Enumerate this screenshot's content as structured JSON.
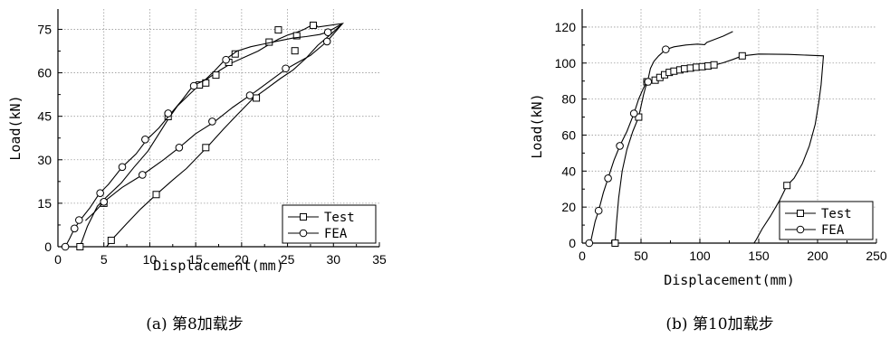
{
  "chart_data": [
    {
      "type": "line",
      "caption": "(a) 第8加载步",
      "xlabel": "Displacement(mm)",
      "ylabel": "Load(kN)",
      "xlim": [
        0,
        35
      ],
      "ylim": [
        0,
        82
      ],
      "x_ticks": [
        0,
        5,
        10,
        15,
        20,
        25,
        30,
        35
      ],
      "y_ticks": [
        0,
        15,
        30,
        45,
        60,
        75
      ],
      "grid": true,
      "legend_position": "bottom-right",
      "series": [
        {
          "name": "Test",
          "marker": "square",
          "line": [
            [
              2.4,
              0
            ],
            [
              3.2,
              7
            ],
            [
              4.3,
              14
            ],
            [
              5.3,
              17.2
            ],
            [
              6.9,
              22
            ],
            [
              8.3,
              27.5
            ],
            [
              9.8,
              33
            ],
            [
              11,
              39
            ],
            [
              12,
              44
            ],
            [
              13,
              48.5
            ],
            [
              14.3,
              52.5
            ],
            [
              15.3,
              55.5
            ],
            [
              16.5,
              58.5
            ],
            [
              17.7,
              61
            ],
            [
              19,
              63.5
            ],
            [
              20.4,
              65.5
            ],
            [
              21.8,
              67.5
            ],
            [
              23,
              69.8
            ],
            [
              24,
              71.6
            ],
            [
              25,
              73
            ],
            [
              26,
              74
            ],
            [
              26.8,
              75
            ],
            [
              27.5,
              76.2
            ],
            [
              28.1,
              76.6
            ],
            [
              28.3,
              75.8
            ],
            [
              31,
              77
            ],
            [
              29.6,
              73
            ],
            [
              28.3,
              69.5
            ],
            [
              27,
              65
            ],
            [
              25.6,
              61
            ],
            [
              24.2,
              58
            ],
            [
              22.5,
              54
            ],
            [
              21.3,
              51.3
            ],
            [
              19.5,
              45.5
            ],
            [
              18,
              40.5
            ],
            [
              16.3,
              34.5
            ],
            [
              14,
              27
            ],
            [
              12.5,
              23
            ],
            [
              10.7,
              18
            ],
            [
              9,
              13
            ],
            [
              7.5,
              8
            ],
            [
              5.8,
              2.2
            ],
            [
              5.3,
              0
            ]
          ],
          "markers": [
            [
              2.4,
              0
            ],
            [
              5.8,
              2.2
            ],
            [
              10.7,
              18
            ],
            [
              16.1,
              34.2
            ],
            [
              21.6,
              51.3
            ],
            [
              25.8,
              67.6
            ],
            [
              27.8,
              76.4
            ],
            [
              24,
              74.8
            ],
            [
              26,
              72.8
            ],
            [
              23,
              70.6
            ],
            [
              19.3,
              66.5
            ],
            [
              18.6,
              63.6
            ],
            [
              17.2,
              59.2
            ],
            [
              16.1,
              56.5
            ],
            [
              15.4,
              55.8
            ],
            [
              12,
              44.9
            ],
            [
              5,
              15
            ]
          ]
        },
        {
          "name": "FEA",
          "marker": "circle",
          "line": [
            [
              0.8,
              0
            ],
            [
              1.3,
              3
            ],
            [
              1.8,
              6.3
            ],
            [
              2.5,
              9.5
            ],
            [
              3.5,
              13.5
            ],
            [
              4.5,
              18.3
            ],
            [
              5.5,
              21.5
            ],
            [
              7,
              27.5
            ],
            [
              8.5,
              32
            ],
            [
              9.7,
              37
            ],
            [
              11,
              41
            ],
            [
              12.3,
              46
            ],
            [
              13.5,
              50.5
            ],
            [
              14.7,
              55.5
            ],
            [
              16,
              57.5
            ],
            [
              17,
              60.5
            ],
            [
              18.2,
              64.5
            ],
            [
              19.5,
              67.5
            ],
            [
              21,
              69
            ],
            [
              22.5,
              70
            ],
            [
              24,
              71
            ],
            [
              25.6,
              72
            ],
            [
              27,
              72.5
            ],
            [
              28.5,
              73.2
            ],
            [
              29.3,
              74
            ],
            [
              31,
              77
            ],
            [
              29.3,
              70.8
            ],
            [
              27.5,
              66
            ],
            [
              25.8,
              63
            ],
            [
              24.8,
              61.2
            ],
            [
              23,
              57
            ],
            [
              21.5,
              53.5
            ],
            [
              20.8,
              52
            ],
            [
              19,
              48
            ],
            [
              17,
              43
            ],
            [
              15,
              39
            ],
            [
              13.2,
              34.2
            ],
            [
              11.5,
              30
            ],
            [
              9.2,
              24.8
            ],
            [
              7,
              20.5
            ],
            [
              5,
              15.5
            ],
            [
              4,
              12
            ],
            [
              3,
              9
            ]
          ],
          "markers": [
            [
              0.8,
              0
            ],
            [
              1.8,
              6.3
            ],
            [
              2.3,
              9.2
            ],
            [
              4.6,
              18.5
            ],
            [
              7,
              27.5
            ],
            [
              9.5,
              37
            ],
            [
              12,
              46
            ],
            [
              14.8,
              55.5
            ],
            [
              18.3,
              64.5
            ],
            [
              29.4,
              74
            ],
            [
              29.3,
              70.8
            ],
            [
              24.8,
              61.5
            ],
            [
              20.9,
              52.2
            ],
            [
              16.8,
              43.2
            ],
            [
              13.2,
              34.2
            ],
            [
              9.2,
              24.8
            ],
            [
              5,
              15.5
            ]
          ]
        }
      ]
    },
    {
      "type": "line",
      "caption": "(b) 第10加载步",
      "xlabel": "Displacement(mm)",
      "ylabel": "Load(kN)",
      "xlim": [
        0,
        250
      ],
      "ylim": [
        0,
        130
      ],
      "x_ticks": [
        0,
        50,
        100,
        150,
        200,
        250
      ],
      "y_ticks": [
        0,
        20,
        40,
        60,
        80,
        100,
        120
      ],
      "grid": true,
      "legend_position": "bottom-right",
      "series": [
        {
          "name": "Test",
          "marker": "square",
          "line": [
            [
              28,
              0
            ],
            [
              29,
              10
            ],
            [
              31,
              25
            ],
            [
              34,
              40
            ],
            [
              38,
              52
            ],
            [
              43,
              62
            ],
            [
              48,
              70
            ],
            [
              52,
              82
            ],
            [
              54,
              87
            ],
            [
              57,
              89.5
            ],
            [
              60,
              90.5
            ],
            [
              64,
              92
            ],
            [
              68,
              93.5
            ],
            [
              73,
              94.8
            ],
            [
              78,
              95.5
            ],
            [
              83,
              96.2
            ],
            [
              88,
              96.8
            ],
            [
              93,
              97.2
            ],
            [
              98,
              97.7
            ],
            [
              103,
              98
            ],
            [
              108,
              98.4
            ],
            [
              113,
              99
            ],
            [
              120,
              100.2
            ],
            [
              128,
              102
            ],
            [
              136,
              104
            ],
            [
              150,
              105
            ],
            [
              175,
              104.8
            ],
            [
              205,
              104
            ],
            [
              204,
              96
            ],
            [
              203,
              88
            ],
            [
              201,
              78
            ],
            [
              198,
              66
            ],
            [
              193,
              54
            ],
            [
              187,
              44
            ],
            [
              180,
              36
            ],
            [
              174,
              32
            ],
            [
              168,
              24
            ],
            [
              160,
              15
            ],
            [
              153,
              8
            ],
            [
              148,
              2
            ],
            [
              146,
              0
            ]
          ],
          "markers": [
            [
              28,
              0
            ],
            [
              48,
              70
            ],
            [
              55,
              89.6
            ],
            [
              62,
              90.5
            ],
            [
              66,
              92
            ],
            [
              70,
              93.5
            ],
            [
              74,
              94.8
            ],
            [
              78,
              95.5
            ],
            [
              83,
              96.2
            ],
            [
              87,
              96.8
            ],
            [
              92,
              97.2
            ],
            [
              97,
              97.7
            ],
            [
              102,
              98
            ],
            [
              107,
              98.4
            ],
            [
              112,
              99
            ],
            [
              136,
              104
            ],
            [
              174,
              32
            ]
          ]
        },
        {
          "name": "FEA",
          "marker": "circle",
          "line": [
            [
              7,
              0
            ],
            [
              11,
              12
            ],
            [
              14,
              18
            ],
            [
              18,
              28
            ],
            [
              22,
              36
            ],
            [
              27,
              46
            ],
            [
              32,
              54
            ],
            [
              38,
              62
            ],
            [
              44,
              72
            ],
            [
              48,
              80
            ],
            [
              52,
              86
            ],
            [
              56,
              91
            ],
            [
              58,
              97
            ],
            [
              61,
              101
            ],
            [
              65,
              104
            ],
            [
              71,
              107.5
            ],
            [
              78,
              109
            ],
            [
              88,
              110
            ],
            [
              98,
              110.5
            ],
            [
              104,
              110.2
            ],
            [
              106,
              111.5
            ],
            [
              112,
              113
            ],
            [
              120,
              115
            ],
            [
              128,
              117.5
            ]
          ],
          "markers": [
            [
              6,
              0
            ],
            [
              14,
              18
            ],
            [
              22,
              36
            ],
            [
              32,
              54
            ],
            [
              44,
              72
            ],
            [
              56,
              89.6
            ],
            [
              71,
              107.6
            ]
          ]
        }
      ]
    }
  ]
}
